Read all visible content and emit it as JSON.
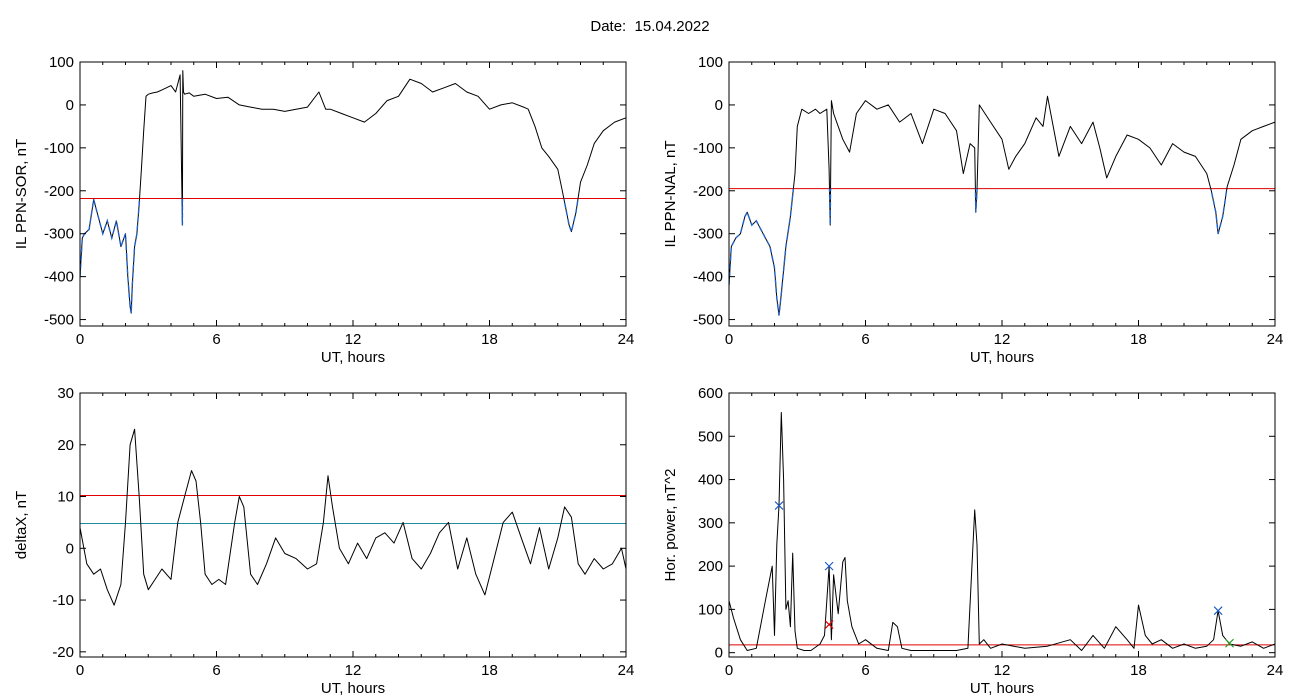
{
  "header": {
    "title": "Date:  15.04.2022"
  },
  "colors": {
    "threshold_red": "#e00000",
    "threshold_cyan": "#1f8ba0",
    "highlight_blue": "#1f5fc8",
    "line": "#000000"
  },
  "chart_data": [
    {
      "type": "line",
      "xlabel": "UT, hours",
      "ylabel": "IL PPN-SOR, nT",
      "xlim": [
        0,
        24
      ],
      "ylim": [
        -515,
        100
      ],
      "xticks": [
        0,
        6,
        12,
        18,
        24
      ],
      "yticks": [
        100,
        0,
        -100,
        -200,
        -300,
        -400,
        -500
      ],
      "hlines": [
        {
          "y": -218,
          "color": "#e00000"
        }
      ],
      "highlight": {
        "below": -218,
        "color": "#1f5fc8"
      },
      "series": [
        {
          "x": [
            0,
            0.1,
            0.2,
            0.4,
            0.6,
            0.7,
            0.8,
            1.0,
            1.2,
            1.4,
            1.6,
            1.8,
            2.0,
            2.1,
            2.2,
            2.25,
            2.3,
            2.4,
            2.5,
            2.6,
            2.7,
            2.8,
            2.9,
            3.0,
            3.2,
            3.4,
            3.6,
            3.8,
            4.0,
            4.2,
            4.4,
            4.5,
            4.52,
            4.55,
            4.6,
            4.8,
            5.0,
            5.5,
            6.0,
            6.5,
            7.0,
            7.5,
            8.0,
            8.5,
            9.0,
            9.5,
            10.0,
            10.5,
            10.8,
            11.0,
            11.5,
            12.0,
            12.5,
            13.0,
            13.5,
            14.0,
            14.5,
            15.0,
            15.5,
            16.0,
            16.5,
            17.0,
            17.5,
            18.0,
            18.5,
            19.0,
            19.5,
            19.7,
            20.0,
            20.3,
            20.6,
            21.0,
            21.2,
            21.5,
            21.6,
            21.8,
            22.0,
            22.3,
            22.6,
            23.0,
            23.5,
            24.0
          ],
          "y": [
            -400,
            -310,
            -300,
            -290,
            -220,
            -240,
            -260,
            -300,
            -270,
            -310,
            -270,
            -330,
            -300,
            -400,
            -470,
            -485,
            -420,
            -330,
            -300,
            -230,
            -150,
            -60,
            20,
            25,
            28,
            30,
            35,
            40,
            45,
            30,
            70,
            -280,
            80,
            30,
            25,
            28,
            20,
            25,
            15,
            18,
            0,
            -5,
            -10,
            -10,
            -15,
            -10,
            -5,
            30,
            -10,
            -10,
            -20,
            -30,
            -40,
            -20,
            10,
            20,
            60,
            50,
            30,
            40,
            50,
            30,
            20,
            -10,
            0,
            5,
            -5,
            -10,
            -50,
            -100,
            -120,
            -150,
            -200,
            -280,
            -295,
            -250,
            -180,
            -140,
            -90,
            -60,
            -40,
            -30
          ]
        }
      ]
    },
    {
      "type": "line",
      "xlabel": "UT, hours",
      "ylabel": "IL PPN-NAL, nT",
      "xlim": [
        0,
        24
      ],
      "ylim": [
        -515,
        100
      ],
      "xticks": [
        0,
        6,
        12,
        18,
        24
      ],
      "yticks": [
        100,
        0,
        -100,
        -200,
        -300,
        -400,
        -500
      ],
      "hlines": [
        {
          "y": -195,
          "color": "#e00000"
        }
      ],
      "highlight": {
        "below": -195,
        "color": "#1f5fc8"
      },
      "series": [
        {
          "x": [
            0,
            0.1,
            0.3,
            0.5,
            0.7,
            0.8,
            1.0,
            1.2,
            1.5,
            1.8,
            2.0,
            2.1,
            2.2,
            2.3,
            2.5,
            2.7,
            2.9,
            3.0,
            3.2,
            3.5,
            3.8,
            4.0,
            4.3,
            4.4,
            4.45,
            4.5,
            4.6,
            5.0,
            5.3,
            5.6,
            6.0,
            6.5,
            7.0,
            7.5,
            8.0,
            8.5,
            9.0,
            9.5,
            10.0,
            10.3,
            10.6,
            10.8,
            10.85,
            10.9,
            11.0,
            11.5,
            12.0,
            12.3,
            12.6,
            13.0,
            13.5,
            13.8,
            14.0,
            14.5,
            15.0,
            15.5,
            16.0,
            16.3,
            16.6,
            17.0,
            17.5,
            18.0,
            18.5,
            19.0,
            19.5,
            20.0,
            20.5,
            21.0,
            21.2,
            21.4,
            21.5,
            21.7,
            21.9,
            22.2,
            22.5,
            23.0,
            23.5,
            24.0
          ],
          "y": [
            -420,
            -330,
            -310,
            -300,
            -260,
            -250,
            -280,
            -270,
            -300,
            -330,
            -380,
            -450,
            -490,
            -440,
            -330,
            -260,
            -160,
            -50,
            -10,
            -20,
            -10,
            -20,
            -10,
            -150,
            -280,
            10,
            -20,
            -80,
            -110,
            -20,
            10,
            -10,
            0,
            -40,
            -20,
            -90,
            -10,
            -20,
            -60,
            -160,
            -90,
            -100,
            -250,
            -200,
            0,
            -40,
            -80,
            -150,
            -120,
            -90,
            -30,
            -50,
            20,
            -120,
            -50,
            -90,
            -40,
            -100,
            -170,
            -120,
            -70,
            -80,
            -100,
            -140,
            -90,
            -110,
            -120,
            -160,
            -200,
            -250,
            -300,
            -260,
            -190,
            -140,
            -80,
            -60,
            -50,
            -40
          ]
        }
      ]
    },
    {
      "type": "line",
      "xlabel": "UT, hours",
      "ylabel": "deltaX, nT",
      "xlim": [
        0,
        24
      ],
      "ylim": [
        -21,
        30
      ],
      "xticks": [
        0,
        6,
        12,
        18,
        24
      ],
      "yticks": [
        30,
        20,
        10,
        0,
        -10,
        -20
      ],
      "hlines": [
        {
          "y": 10.2,
          "color": "#e00000"
        },
        {
          "y": 4.8,
          "color": "#1f8ba0"
        }
      ],
      "series": [
        {
          "x": [
            0,
            0.3,
            0.6,
            0.9,
            1.2,
            1.5,
            1.8,
            2.0,
            2.2,
            2.4,
            2.6,
            2.8,
            3.0,
            3.3,
            3.6,
            4.0,
            4.3,
            4.6,
            4.9,
            5.1,
            5.3,
            5.5,
            5.8,
            6.1,
            6.4,
            6.8,
            7.0,
            7.2,
            7.5,
            7.8,
            8.2,
            8.6,
            9.0,
            9.5,
            10.0,
            10.4,
            10.7,
            10.9,
            11.1,
            11.4,
            11.8,
            12.2,
            12.6,
            13.0,
            13.4,
            13.8,
            14.2,
            14.6,
            15.0,
            15.4,
            15.8,
            16.2,
            16.6,
            17.0,
            17.4,
            17.8,
            18.2,
            18.6,
            19.0,
            19.4,
            19.8,
            20.2,
            20.6,
            21.0,
            21.3,
            21.6,
            21.9,
            22.2,
            22.6,
            23.0,
            23.4,
            23.8,
            24.0
          ],
          "y": [
            4,
            -3,
            -5,
            -4,
            -8,
            -11,
            -7,
            5,
            20,
            23,
            10,
            -5,
            -8,
            -6,
            -4,
            -6,
            5,
            10,
            15,
            13,
            5,
            -5,
            -7,
            -6,
            -7,
            5,
            10,
            8,
            -5,
            -7,
            -3,
            2,
            -1,
            -2,
            -4,
            -3,
            5,
            14,
            8,
            0,
            -3,
            1,
            -2,
            2,
            3,
            1,
            5,
            -2,
            -4,
            -1,
            3,
            5,
            -4,
            2,
            -5,
            -9,
            -2,
            5,
            7,
            2,
            -3,
            4,
            -4,
            2,
            8,
            6,
            -3,
            -5,
            -2,
            -4,
            -3,
            0,
            -4
          ]
        }
      ]
    },
    {
      "type": "line",
      "xlabel": "UT, hours",
      "ylabel": "Hor. power, nT^2",
      "xlim": [
        0,
        24
      ],
      "ylim": [
        -10,
        600
      ],
      "xticks": [
        0,
        6,
        12,
        18,
        24
      ],
      "yticks": [
        600,
        500,
        400,
        300,
        200,
        100,
        0
      ],
      "hlines": [
        {
          "y": 18,
          "color": "#e00000"
        }
      ],
      "markers": [
        {
          "x": 2.2,
          "y": 340,
          "color": "#1f5fc8"
        },
        {
          "x": 4.4,
          "y": 200,
          "color": "#1f5fc8"
        },
        {
          "x": 4.4,
          "y": 65,
          "color": "#e00000"
        },
        {
          "x": 21.5,
          "y": 97,
          "color": "#1f5fc8"
        },
        {
          "x": 22.0,
          "y": 22,
          "color": "#2e9e2e"
        }
      ],
      "series": [
        {
          "x": [
            0,
            0.2,
            0.5,
            0.8,
            1.2,
            1.6,
            1.9,
            2.0,
            2.1,
            2.2,
            2.3,
            2.4,
            2.5,
            2.6,
            2.7,
            2.8,
            2.9,
            3.0,
            3.3,
            3.6,
            4.0,
            4.2,
            4.4,
            4.5,
            4.6,
            4.8,
            5.0,
            5.1,
            5.2,
            5.4,
            5.7,
            6.0,
            6.5,
            7.0,
            7.2,
            7.4,
            7.6,
            8.0,
            9.0,
            10.0,
            10.5,
            10.8,
            10.9,
            11.0,
            11.2,
            11.5,
            12.0,
            13.0,
            14.0,
            15.0,
            15.5,
            16.0,
            16.5,
            17.0,
            17.5,
            17.8,
            18.0,
            18.3,
            18.6,
            19.0,
            19.5,
            20.0,
            20.5,
            21.0,
            21.3,
            21.5,
            21.7,
            22.0,
            22.5,
            23.0,
            23.5,
            24.0
          ],
          "y": [
            120,
            80,
            30,
            5,
            10,
            120,
            200,
            40,
            250,
            340,
            555,
            400,
            100,
            120,
            60,
            230,
            50,
            10,
            5,
            5,
            20,
            40,
            200,
            30,
            180,
            90,
            210,
            220,
            120,
            60,
            20,
            30,
            10,
            5,
            70,
            60,
            10,
            5,
            5,
            5,
            10,
            330,
            250,
            20,
            30,
            10,
            20,
            10,
            15,
            30,
            5,
            40,
            10,
            60,
            30,
            10,
            110,
            40,
            20,
            30,
            10,
            20,
            10,
            15,
            30,
            97,
            40,
            20,
            15,
            25,
            10,
            20
          ]
        }
      ]
    }
  ]
}
